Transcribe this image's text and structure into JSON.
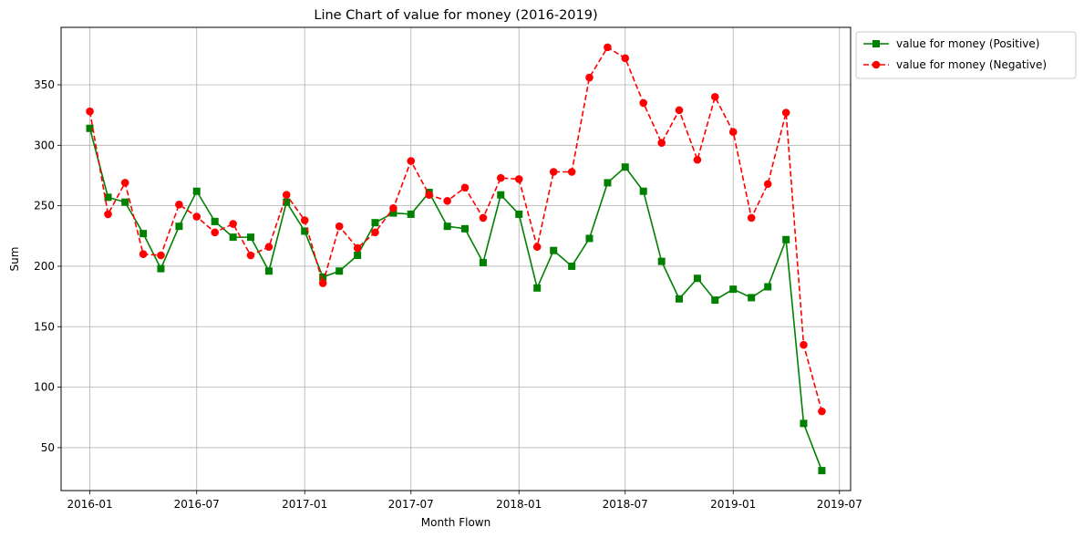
{
  "chart_data": {
    "type": "line",
    "title": "Line Chart of value for money (2016-2019)",
    "xlabel": "Month Flown",
    "ylabel": "Sum",
    "x": [
      "2016-01",
      "2016-02",
      "2016-03",
      "2016-04",
      "2016-05",
      "2016-06",
      "2016-07",
      "2016-08",
      "2016-09",
      "2016-10",
      "2016-11",
      "2016-12",
      "2017-01",
      "2017-02",
      "2017-03",
      "2017-04",
      "2017-05",
      "2017-06",
      "2017-07",
      "2017-08",
      "2017-09",
      "2017-10",
      "2017-11",
      "2017-12",
      "2018-01",
      "2018-02",
      "2018-03",
      "2018-04",
      "2018-05",
      "2018-06",
      "2018-07",
      "2018-08",
      "2018-09",
      "2018-10",
      "2018-11",
      "2018-12",
      "2019-01",
      "2019-02",
      "2019-03",
      "2019-04",
      "2019-05",
      "2019-06"
    ],
    "series": [
      {
        "name": "value for money (Positive)",
        "color": "#008000",
        "marker": "square",
        "linestyle": "solid",
        "values": [
          314,
          257,
          253,
          227,
          198,
          233,
          262,
          237,
          224,
          224,
          196,
          253,
          229,
          191,
          196,
          209,
          236,
          244,
          243,
          261,
          233,
          231,
          203,
          259,
          243,
          182,
          213,
          200,
          223,
          269,
          282,
          262,
          204,
          173,
          190,
          172,
          181,
          174,
          183,
          222,
          70,
          31
        ]
      },
      {
        "name": "value for money (Negative)",
        "color": "#ff0000",
        "marker": "circle",
        "linestyle": "dashed",
        "values": [
          328,
          243,
          269,
          210,
          209,
          251,
          241,
          228,
          235,
          209,
          216,
          259,
          238,
          186,
          233,
          215,
          228,
          248,
          287,
          259,
          254,
          265,
          240,
          273,
          272,
          216,
          278,
          278,
          356,
          381,
          372,
          335,
          302,
          329,
          288,
          340,
          311,
          240,
          268,
          327,
          135,
          80
        ]
      }
    ],
    "x_ticks": [
      "2016-01",
      "2016-07",
      "2017-01",
      "2017-07",
      "2018-01",
      "2018-07",
      "2019-01",
      "2019-07"
    ],
    "y_ticks": [
      50,
      100,
      150,
      200,
      250,
      300,
      350
    ],
    "xlim": [
      "2015-11-13",
      "2019-07-20"
    ],
    "ylim": [
      14.5,
      397.5
    ],
    "grid": true,
    "legend": "outside-upper-right"
  }
}
